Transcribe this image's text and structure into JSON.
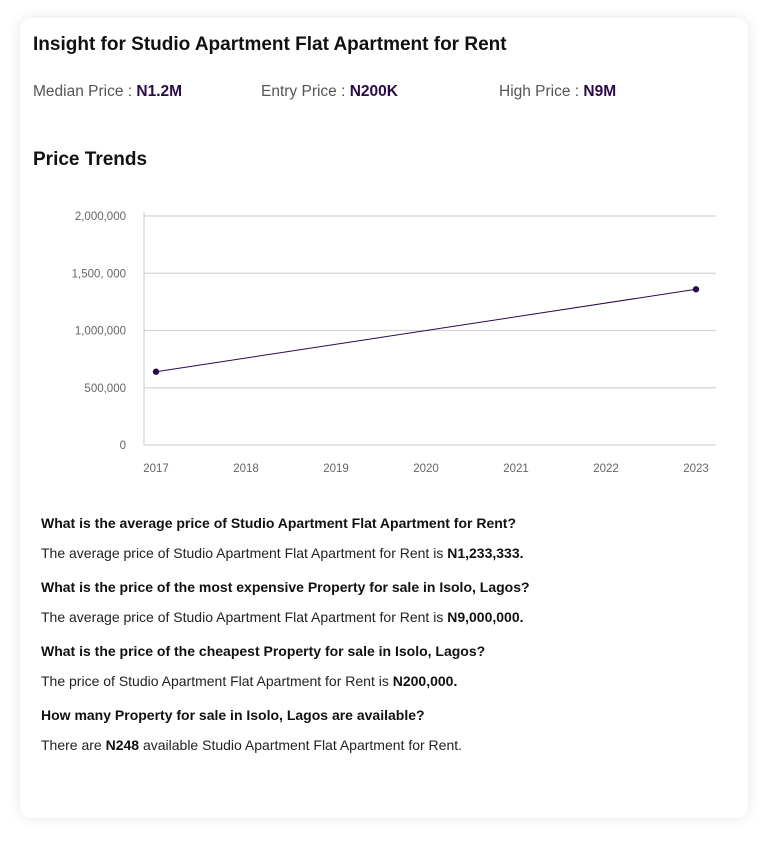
{
  "header": {
    "title": "Insight for Studio Apartment Flat Apartment for Rent"
  },
  "stats": [
    {
      "label": "Median Price : ",
      "value": "N1.2M"
    },
    {
      "label": "Entry Price : ",
      "value": "N200K"
    },
    {
      "label": "High Price : ",
      "value": "N9M"
    }
  ],
  "trends": {
    "title": "Price Trends"
  },
  "chart_data": {
    "type": "line",
    "title": "",
    "xlabel": "",
    "ylabel": "",
    "x": [
      "2017",
      "2018",
      "2019",
      "2020",
      "2021",
      "2022",
      "2023"
    ],
    "y_ticks": [
      0,
      500000,
      1000000,
      1500000,
      2000000
    ],
    "y_tick_labels": [
      "0",
      "500,000",
      "1,000,000",
      "1,500, 000",
      "2,000,000"
    ],
    "ylim": [
      0,
      2000000
    ],
    "series": [
      {
        "points": [
          {
            "x": "2017",
            "y": 640000
          },
          {
            "x": "2023",
            "y": 1360000
          }
        ]
      }
    ],
    "grid": true,
    "line_color": "#2b0a4b"
  },
  "faq": [
    {
      "question": "What is the average price of Studio Apartment Flat Apartment for Rent?",
      "answer_prefix": "The average price of Studio Apartment Flat Apartment for Rent is ",
      "answer_value": "N1,233,333",
      "answer_suffix": "."
    },
    {
      "question": "What is the price of the most expensive Property for sale in Isolo, Lagos?",
      "answer_prefix": "The average price of Studio Apartment Flat Apartment for Rent is ",
      "answer_value": "N9,000,000",
      "answer_suffix": "."
    },
    {
      "question": "What is the price of the cheapest Property for sale in Isolo, Lagos?",
      "answer_prefix": "The price of Studio Apartment Flat Apartment for Rent is ",
      "answer_value": "N200,000",
      "answer_suffix": "."
    },
    {
      "question": "How many Property for sale in Isolo, Lagos are available?",
      "answer_prefix": "There are ",
      "answer_value": "N248",
      "answer_suffix": " available Studio Apartment Flat Apartment for Rent."
    }
  ]
}
